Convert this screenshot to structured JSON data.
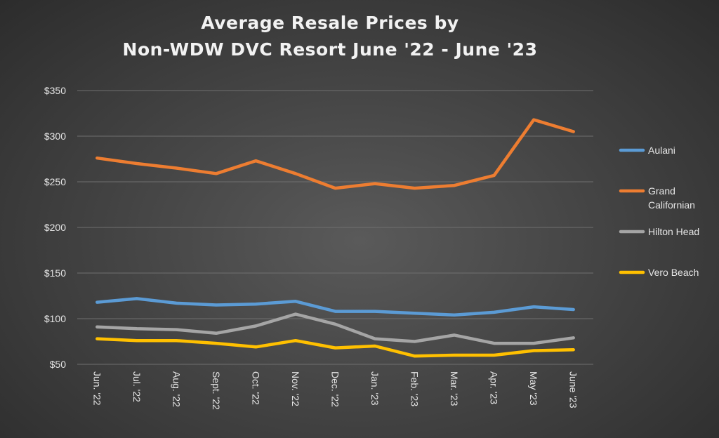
{
  "chart_data": {
    "type": "line",
    "title": [
      "Average Resale Prices by",
      "Non-WDW DVC Resort June '22 - June '23"
    ],
    "xlabel": "",
    "ylabel": "",
    "categories": [
      "Jun. '22",
      "Jul. '22",
      "Aug. '22",
      "Sept. '22",
      "Oct. '22",
      "Nov. '22",
      "Dec. '22",
      "Jan. '23",
      "Feb. '23",
      "Mar. '23",
      "Apr. '23",
      "May '23",
      "June '23"
    ],
    "ylim": [
      50,
      350
    ],
    "yticks": [
      50,
      100,
      150,
      200,
      250,
      300,
      350
    ],
    "ytick_labels": [
      "$50",
      "$100",
      "$150",
      "$200",
      "$250",
      "$300",
      "$350"
    ],
    "grid": true,
    "legend_position": "right",
    "series": [
      {
        "name": "Aulani",
        "color": "#5b9bd5",
        "values": [
          118,
          122,
          117,
          115,
          116,
          119,
          108,
          108,
          106,
          104,
          107,
          113,
          110
        ]
      },
      {
        "name": "Grand Californian",
        "color": "#ed7d31",
        "values": [
          276,
          270,
          265,
          259,
          273,
          259,
          243,
          248,
          243,
          246,
          257,
          318,
          305
        ]
      },
      {
        "name": "Hilton Head",
        "color": "#a5a5a5",
        "values": [
          91,
          89,
          88,
          84,
          92,
          105,
          94,
          78,
          75,
          82,
          73,
          73,
          79
        ]
      },
      {
        "name": "Vero Beach",
        "color": "#ffc000",
        "values": [
          78,
          76,
          76,
          73,
          69,
          76,
          68,
          70,
          59,
          60,
          60,
          65,
          66
        ]
      }
    ]
  }
}
